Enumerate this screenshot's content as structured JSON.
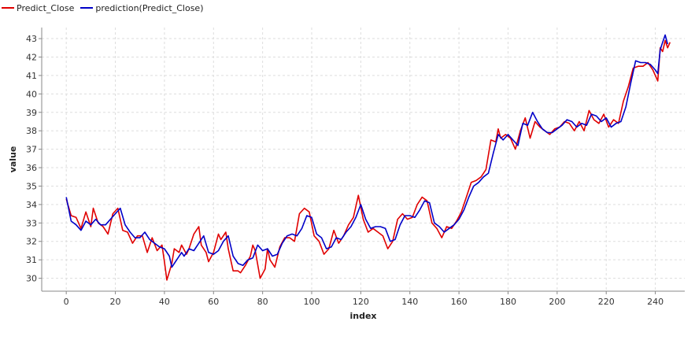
{
  "chart_data": {
    "type": "line",
    "xlabel": "index",
    "ylabel": "value",
    "xlim": [
      -10,
      252
    ],
    "ylim": [
      29.3,
      43.6
    ],
    "x_ticks": [
      0,
      20,
      40,
      60,
      80,
      100,
      120,
      140,
      160,
      180,
      200,
      220,
      240
    ],
    "y_ticks": [
      30,
      31,
      32,
      33,
      34,
      35,
      36,
      37,
      38,
      39,
      40,
      41,
      42,
      43
    ],
    "grid": true,
    "legend_position": "top-left",
    "colors": {
      "predict_close": "#e00000",
      "prediction": "#0000c8",
      "grid": "#dddddd",
      "axis": "#888888"
    },
    "series": [
      {
        "name": "Predict_Close",
        "points": [
          [
            0,
            34.3
          ],
          [
            2,
            33.4
          ],
          [
            4,
            33.3
          ],
          [
            6,
            32.7
          ],
          [
            8,
            33.6
          ],
          [
            10,
            32.8
          ],
          [
            11,
            33.8
          ],
          [
            13,
            33.0
          ],
          [
            15,
            32.8
          ],
          [
            17,
            32.4
          ],
          [
            19,
            33.5
          ],
          [
            21,
            33.8
          ],
          [
            23,
            32.6
          ],
          [
            25,
            32.5
          ],
          [
            27,
            31.9
          ],
          [
            29,
            32.3
          ],
          [
            31,
            32.3
          ],
          [
            33,
            31.4
          ],
          [
            35,
            32.2
          ],
          [
            37,
            31.5
          ],
          [
            39,
            31.8
          ],
          [
            40,
            30.9
          ],
          [
            41,
            29.9
          ],
          [
            43,
            30.8
          ],
          [
            44,
            31.6
          ],
          [
            46,
            31.4
          ],
          [
            47,
            31.8
          ],
          [
            49,
            31.3
          ],
          [
            50,
            31.6
          ],
          [
            52,
            32.4
          ],
          [
            54,
            32.8
          ],
          [
            55,
            31.8
          ],
          [
            57,
            31.4
          ],
          [
            58,
            30.9
          ],
          [
            60,
            31.4
          ],
          [
            62,
            32.4
          ],
          [
            63,
            32.1
          ],
          [
            65,
            32.5
          ],
          [
            66,
            31.6
          ],
          [
            68,
            30.4
          ],
          [
            70,
            30.4
          ],
          [
            71,
            30.3
          ],
          [
            73,
            30.7
          ],
          [
            75,
            31.2
          ],
          [
            76,
            31.8
          ],
          [
            77,
            31.5
          ],
          [
            79,
            30.0
          ],
          [
            81,
            30.5
          ],
          [
            82,
            31.6
          ],
          [
            83,
            31.0
          ],
          [
            85,
            30.6
          ],
          [
            87,
            31.7
          ],
          [
            89,
            32.2
          ],
          [
            91,
            32.2
          ],
          [
            93,
            32.0
          ],
          [
            95,
            33.5
          ],
          [
            97,
            33.8
          ],
          [
            99,
            33.6
          ],
          [
            101,
            32.3
          ],
          [
            103,
            32.0
          ],
          [
            105,
            31.3
          ],
          [
            107,
            31.6
          ],
          [
            109,
            32.6
          ],
          [
            111,
            31.9
          ],
          [
            113,
            32.3
          ],
          [
            115,
            32.9
          ],
          [
            117,
            33.3
          ],
          [
            119,
            34.5
          ],
          [
            121,
            33.2
          ],
          [
            123,
            32.5
          ],
          [
            125,
            32.7
          ],
          [
            127,
            32.5
          ],
          [
            129,
            32.3
          ],
          [
            131,
            31.6
          ],
          [
            133,
            32.0
          ],
          [
            135,
            33.2
          ],
          [
            137,
            33.5
          ],
          [
            139,
            33.2
          ],
          [
            141,
            33.3
          ],
          [
            143,
            34.0
          ],
          [
            145,
            34.4
          ],
          [
            147,
            34.2
          ],
          [
            149,
            33.0
          ],
          [
            151,
            32.7
          ],
          [
            153,
            32.2
          ],
          [
            155,
            32.8
          ],
          [
            157,
            32.7
          ],
          [
            159,
            33.1
          ],
          [
            161,
            33.6
          ],
          [
            163,
            34.4
          ],
          [
            165,
            35.2
          ],
          [
            167,
            35.3
          ],
          [
            169,
            35.5
          ],
          [
            171,
            35.9
          ],
          [
            173,
            37.5
          ],
          [
            175,
            37.4
          ],
          [
            176,
            38.1
          ],
          [
            177,
            37.6
          ],
          [
            179,
            37.8
          ],
          [
            181,
            37.6
          ],
          [
            183,
            37.0
          ],
          [
            185,
            38.0
          ],
          [
            187,
            38.7
          ],
          [
            189,
            37.6
          ],
          [
            191,
            38.5
          ],
          [
            193,
            38.2
          ],
          [
            195,
            38.0
          ],
          [
            197,
            37.8
          ],
          [
            199,
            38.1
          ],
          [
            201,
            38.2
          ],
          [
            203,
            38.5
          ],
          [
            205,
            38.4
          ],
          [
            207,
            38.0
          ],
          [
            209,
            38.5
          ],
          [
            211,
            38.0
          ],
          [
            213,
            39.1
          ],
          [
            215,
            38.6
          ],
          [
            217,
            38.4
          ],
          [
            219,
            38.9
          ],
          [
            221,
            38.2
          ],
          [
            223,
            38.6
          ],
          [
            225,
            38.4
          ],
          [
            227,
            39.6
          ],
          [
            229,
            40.4
          ],
          [
            231,
            41.4
          ],
          [
            233,
            41.5
          ],
          [
            235,
            41.5
          ],
          [
            237,
            41.7
          ],
          [
            239,
            41.3
          ],
          [
            241,
            40.7
          ],
          [
            242,
            42.5
          ],
          [
            243,
            42.3
          ],
          [
            244,
            42.9
          ],
          [
            245,
            42.5
          ],
          [
            246,
            42.8
          ]
        ]
      },
      {
        "name": "prediction(Predict_Close)",
        "points": [
          [
            0,
            34.4
          ],
          [
            2,
            33.1
          ],
          [
            4,
            32.9
          ],
          [
            6,
            32.6
          ],
          [
            8,
            33.1
          ],
          [
            10,
            32.9
          ],
          [
            12,
            33.2
          ],
          [
            14,
            32.9
          ],
          [
            16,
            32.9
          ],
          [
            18,
            33.2
          ],
          [
            20,
            33.5
          ],
          [
            22,
            33.8
          ],
          [
            24,
            32.9
          ],
          [
            26,
            32.5
          ],
          [
            28,
            32.2
          ],
          [
            30,
            32.2
          ],
          [
            32,
            32.5
          ],
          [
            34,
            32.1
          ],
          [
            36,
            31.9
          ],
          [
            38,
            31.7
          ],
          [
            40,
            31.6
          ],
          [
            42,
            31.2
          ],
          [
            43,
            30.6
          ],
          [
            45,
            31.0
          ],
          [
            47,
            31.4
          ],
          [
            48,
            31.2
          ],
          [
            50,
            31.6
          ],
          [
            52,
            31.5
          ],
          [
            54,
            31.9
          ],
          [
            56,
            32.3
          ],
          [
            58,
            31.4
          ],
          [
            60,
            31.3
          ],
          [
            62,
            31.5
          ],
          [
            64,
            32.0
          ],
          [
            66,
            32.3
          ],
          [
            68,
            31.2
          ],
          [
            70,
            30.8
          ],
          [
            72,
            30.7
          ],
          [
            74,
            31.0
          ],
          [
            76,
            31.1
          ],
          [
            78,
            31.8
          ],
          [
            80,
            31.5
          ],
          [
            82,
            31.6
          ],
          [
            84,
            31.2
          ],
          [
            86,
            31.3
          ],
          [
            88,
            31.9
          ],
          [
            90,
            32.3
          ],
          [
            92,
            32.4
          ],
          [
            94,
            32.3
          ],
          [
            96,
            32.7
          ],
          [
            98,
            33.4
          ],
          [
            100,
            33.3
          ],
          [
            102,
            32.4
          ],
          [
            104,
            32.2
          ],
          [
            106,
            31.6
          ],
          [
            108,
            31.7
          ],
          [
            110,
            32.2
          ],
          [
            112,
            32.1
          ],
          [
            114,
            32.5
          ],
          [
            116,
            32.8
          ],
          [
            118,
            33.3
          ],
          [
            120,
            34.0
          ],
          [
            122,
            33.2
          ],
          [
            124,
            32.7
          ],
          [
            126,
            32.8
          ],
          [
            128,
            32.8
          ],
          [
            130,
            32.7
          ],
          [
            132,
            32.0
          ],
          [
            134,
            32.1
          ],
          [
            136,
            32.9
          ],
          [
            138,
            33.4
          ],
          [
            140,
            33.4
          ],
          [
            142,
            33.3
          ],
          [
            144,
            33.7
          ],
          [
            146,
            34.2
          ],
          [
            148,
            34.1
          ],
          [
            150,
            33.0
          ],
          [
            152,
            32.8
          ],
          [
            154,
            32.5
          ],
          [
            156,
            32.7
          ],
          [
            158,
            32.9
          ],
          [
            160,
            33.2
          ],
          [
            162,
            33.7
          ],
          [
            164,
            34.4
          ],
          [
            166,
            35.0
          ],
          [
            168,
            35.2
          ],
          [
            170,
            35.5
          ],
          [
            172,
            35.7
          ],
          [
            174,
            36.8
          ],
          [
            176,
            37.8
          ],
          [
            178,
            37.5
          ],
          [
            180,
            37.8
          ],
          [
            182,
            37.5
          ],
          [
            184,
            37.2
          ],
          [
            186,
            38.4
          ],
          [
            188,
            38.3
          ],
          [
            190,
            39.0
          ],
          [
            192,
            38.5
          ],
          [
            194,
            38.1
          ],
          [
            196,
            37.9
          ],
          [
            198,
            37.9
          ],
          [
            200,
            38.1
          ],
          [
            202,
            38.3
          ],
          [
            204,
            38.6
          ],
          [
            206,
            38.5
          ],
          [
            208,
            38.2
          ],
          [
            210,
            38.4
          ],
          [
            212,
            38.3
          ],
          [
            214,
            38.9
          ],
          [
            216,
            38.8
          ],
          [
            218,
            38.5
          ],
          [
            220,
            38.7
          ],
          [
            222,
            38.2
          ],
          [
            224,
            38.4
          ],
          [
            226,
            38.5
          ],
          [
            228,
            39.3
          ],
          [
            230,
            40.6
          ],
          [
            232,
            41.8
          ],
          [
            234,
            41.7
          ],
          [
            236,
            41.7
          ],
          [
            238,
            41.6
          ],
          [
            240,
            41.3
          ],
          [
            241,
            41.1
          ],
          [
            242,
            42.4
          ],
          [
            243,
            42.8
          ],
          [
            244,
            43.2
          ],
          [
            245,
            42.7
          ]
        ]
      }
    ]
  }
}
